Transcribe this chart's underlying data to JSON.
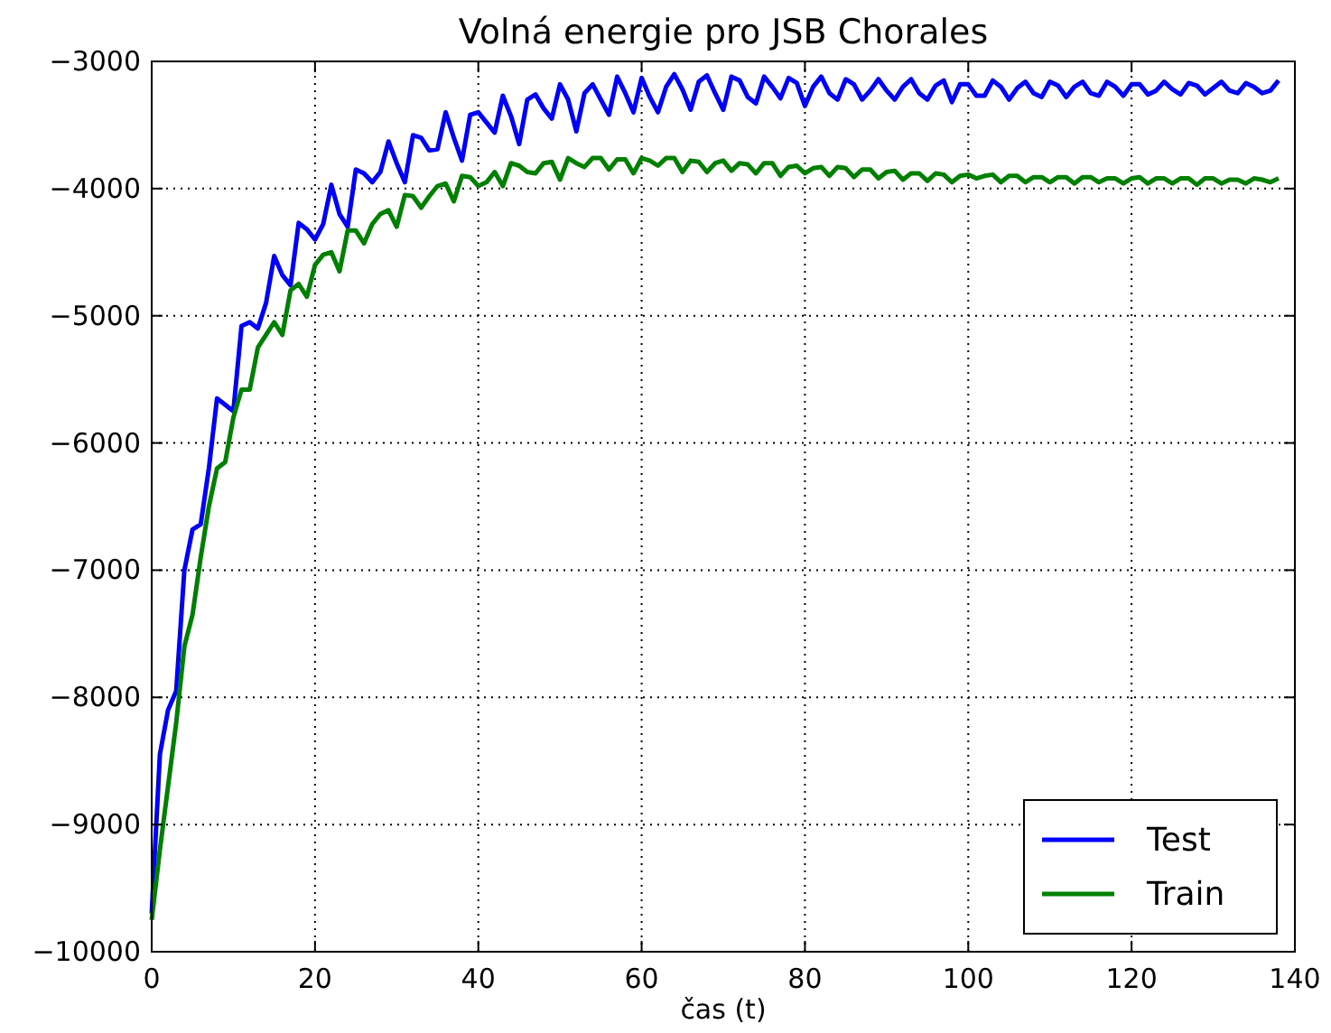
{
  "chart_data": {
    "type": "line",
    "title": "Volná energie pro JSB Chorales",
    "xlabel": "čas (t)",
    "x": [
      0,
      1,
      2,
      3,
      4,
      5,
      6,
      7,
      8,
      9,
      10,
      11,
      12,
      13,
      14,
      15,
      16,
      17,
      18,
      19,
      20,
      21,
      22,
      23,
      24,
      25,
      26,
      27,
      28,
      29,
      30,
      31,
      32,
      33,
      34,
      35,
      36,
      37,
      38,
      39,
      40,
      41,
      42,
      43,
      44,
      45,
      46,
      47,
      48,
      49,
      50,
      51,
      52,
      53,
      54,
      55,
      56,
      57,
      58,
      59,
      60,
      61,
      62,
      63,
      64,
      65,
      66,
      67,
      68,
      69,
      70,
      71,
      72,
      73,
      74,
      75,
      76,
      77,
      78,
      79,
      80,
      81,
      82,
      83,
      84,
      85,
      86,
      87,
      88,
      89,
      90,
      91,
      92,
      93,
      94,
      95,
      96,
      97,
      98,
      99,
      100,
      101,
      102,
      103,
      104,
      105,
      106,
      107,
      108,
      109,
      110,
      111,
      112,
      113,
      114,
      115,
      116,
      117,
      118,
      119,
      120,
      121,
      122,
      123,
      124,
      125,
      126,
      127,
      128,
      129,
      130,
      131,
      132,
      133,
      134,
      135,
      136,
      137,
      138
    ],
    "series": [
      {
        "name": "Test",
        "color": "#0000ff",
        "values": [
          -9700,
          -8450,
          -8100,
          -7950,
          -7000,
          -6680,
          -6640,
          -6200,
          -5650,
          -5700,
          -5750,
          -5080,
          -5050,
          -5100,
          -4900,
          -4530,
          -4680,
          -4760,
          -4270,
          -4320,
          -4400,
          -4280,
          -3970,
          -4200,
          -4300,
          -3850,
          -3880,
          -3950,
          -3870,
          -3630,
          -3800,
          -3950,
          -3580,
          -3600,
          -3700,
          -3690,
          -3400,
          -3600,
          -3780,
          -3420,
          -3400,
          -3480,
          -3560,
          -3270,
          -3430,
          -3650,
          -3300,
          -3260,
          -3370,
          -3450,
          -3180,
          -3300,
          -3550,
          -3250,
          -3180,
          -3300,
          -3420,
          -3120,
          -3250,
          -3400,
          -3130,
          -3280,
          -3400,
          -3200,
          -3100,
          -3220,
          -3380,
          -3160,
          -3110,
          -3250,
          -3380,
          -3120,
          -3150,
          -3280,
          -3330,
          -3120,
          -3200,
          -3290,
          -3130,
          -3170,
          -3350,
          -3200,
          -3120,
          -3250,
          -3300,
          -3140,
          -3180,
          -3300,
          -3230,
          -3140,
          -3230,
          -3300,
          -3200,
          -3140,
          -3250,
          -3300,
          -3190,
          -3150,
          -3320,
          -3180,
          -3180,
          -3270,
          -3270,
          -3150,
          -3200,
          -3300,
          -3210,
          -3160,
          -3250,
          -3280,
          -3160,
          -3190,
          -3280,
          -3200,
          -3160,
          -3250,
          -3270,
          -3160,
          -3200,
          -3270,
          -3180,
          -3180,
          -3260,
          -3230,
          -3160,
          -3220,
          -3260,
          -3170,
          -3190,
          -3260,
          -3210,
          -3160,
          -3230,
          -3250,
          -3170,
          -3200,
          -3250,
          -3230,
          -3150
        ]
      },
      {
        "name": "Train",
        "color": "#008000",
        "values": [
          -9750,
          -9200,
          -8700,
          -8200,
          -7600,
          -7350,
          -6900,
          -6500,
          -6200,
          -6150,
          -5800,
          -5580,
          -5580,
          -5250,
          -5150,
          -5050,
          -5150,
          -4800,
          -4750,
          -4850,
          -4600,
          -4520,
          -4500,
          -4650,
          -4330,
          -4330,
          -4430,
          -4280,
          -4200,
          -4170,
          -4300,
          -4050,
          -4060,
          -4150,
          -4060,
          -3980,
          -3960,
          -4100,
          -3900,
          -3910,
          -3980,
          -3950,
          -3870,
          -3980,
          -3800,
          -3820,
          -3870,
          -3880,
          -3800,
          -3790,
          -3930,
          -3760,
          -3800,
          -3830,
          -3760,
          -3760,
          -3850,
          -3770,
          -3770,
          -3880,
          -3760,
          -3780,
          -3820,
          -3760,
          -3760,
          -3870,
          -3780,
          -3790,
          -3870,
          -3800,
          -3780,
          -3860,
          -3800,
          -3810,
          -3880,
          -3800,
          -3800,
          -3900,
          -3830,
          -3820,
          -3880,
          -3840,
          -3830,
          -3900,
          -3830,
          -3840,
          -3910,
          -3850,
          -3850,
          -3920,
          -3870,
          -3860,
          -3930,
          -3880,
          -3880,
          -3940,
          -3880,
          -3890,
          -3950,
          -3900,
          -3890,
          -3920,
          -3900,
          -3890,
          -3950,
          -3900,
          -3900,
          -3950,
          -3910,
          -3910,
          -3950,
          -3910,
          -3910,
          -3960,
          -3910,
          -3910,
          -3950,
          -3920,
          -3920,
          -3960,
          -3920,
          -3910,
          -3960,
          -3920,
          -3920,
          -3960,
          -3920,
          -3920,
          -3970,
          -3920,
          -3920,
          -3960,
          -3930,
          -3930,
          -3960,
          -3920,
          -3930,
          -3950,
          -3920
        ]
      }
    ],
    "xlim": [
      0,
      140
    ],
    "xticks": [
      0,
      20,
      40,
      60,
      80,
      100,
      120,
      140
    ],
    "ylim": [
      -10000,
      -3000
    ],
    "yticks": [
      -10000,
      -9000,
      -8000,
      -7000,
      -6000,
      -5000,
      -4000,
      -3000
    ],
    "grid": true,
    "legend": "bottom right",
    "line_style": "solid",
    "marker": "none"
  }
}
